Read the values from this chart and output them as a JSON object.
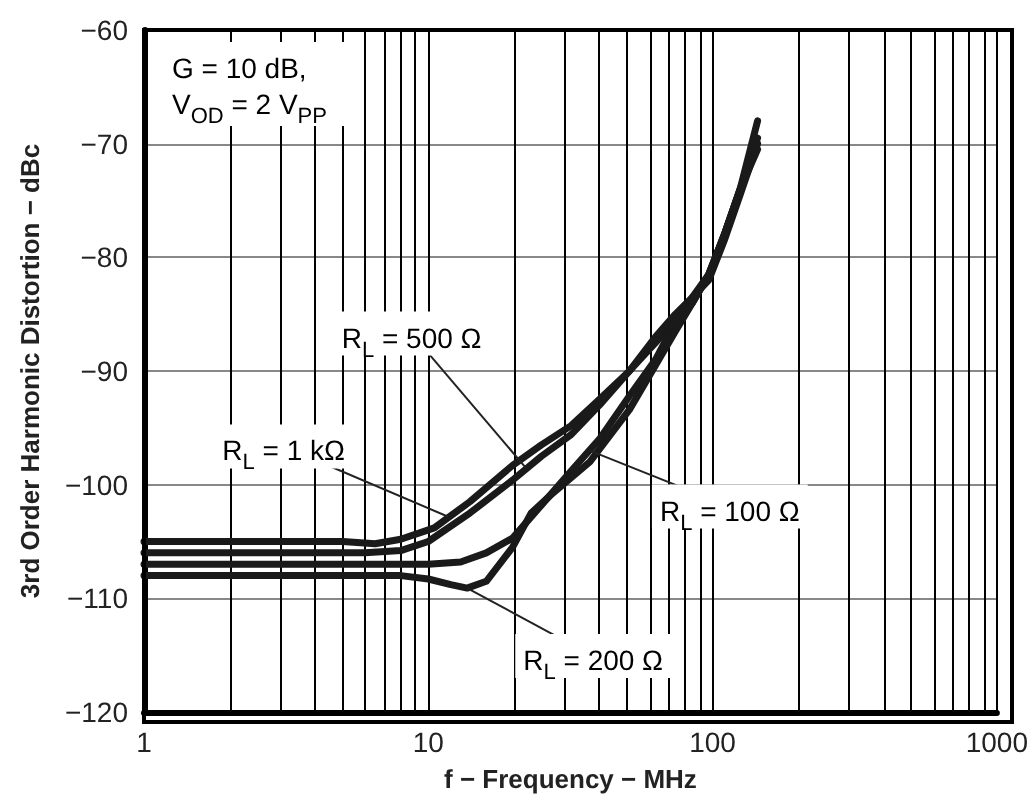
{
  "chart_data": {
    "type": "line",
    "xlabel": "f − Frequency − MHz",
    "ylabel": "3rd Order Harmonic Distortion − dBc",
    "log": "x",
    "grid": true,
    "marker": "none",
    "line_style": "solid",
    "xlim": [
      1,
      1000
    ],
    "xticks": [
      1,
      10,
      100,
      1000
    ],
    "ylim": [
      -120,
      -60
    ],
    "yticks": [
      -120,
      -110,
      -100,
      -90,
      -80,
      -70,
      -60
    ],
    "annotations": [
      "G = 10 dB,",
      "V$_{OD}$ = 2 V$_{PP}$",
      {
        "text": "R$_{L}$ = 500 Ω",
        "x": 22,
        "y": -98.5
      },
      {
        "text": "R$_{L}$ = 1 kΩ",
        "x": 11.7,
        "y": -102.8
      },
      {
        "text": "R$_{L}$ = 100 Ω",
        "x": 37,
        "y": -97
      },
      {
        "text": "R$_{L}$ = 200 Ω",
        "x": 13.7,
        "y": -109.1
      }
    ],
    "series": [
      {
        "color": "#1a1a1a",
        "x": [
          1,
          3,
          5,
          6.5,
          8,
          10.5,
          14,
          19.8,
          25,
          31.8,
          40,
          51,
          63,
          74,
          85,
          97,
          110,
          125,
          144
        ],
        "values": [
          -105,
          -105,
          -105,
          -105.2,
          -104.8,
          -103.8,
          -101.5,
          -98.3,
          -96.5,
          -94.8,
          -92.5,
          -90,
          -87.5,
          -85.5,
          -84,
          -81.5,
          -78,
          -74,
          -68
        ]
      },
      {
        "color": "#1a1a1a",
        "x": [
          1,
          3,
          6,
          8,
          10,
          14,
          19.8,
          25,
          31.8,
          40,
          51,
          63,
          74,
          85,
          97,
          110,
          125,
          144
        ],
        "values": [
          -106,
          -106,
          -106,
          -105.8,
          -105,
          -102.5,
          -99.6,
          -97.5,
          -95.6,
          -93,
          -90,
          -87,
          -85,
          -83.5,
          -82,
          -78.5,
          -74.5,
          -70
        ]
      },
      {
        "color": "#1a1a1a",
        "x": [
          1,
          5,
          10,
          13,
          16,
          19.8,
          25,
          31.8,
          40,
          51,
          63,
          74,
          85,
          97,
          110,
          125,
          144
        ],
        "values": [
          -107,
          -107,
          -107,
          -106.8,
          -106,
          -104.7,
          -101.8,
          -98.8,
          -96,
          -92.2,
          -89,
          -85.7,
          -83.5,
          -81.5,
          -78,
          -74,
          -69.5
        ]
      },
      {
        "color": "#1a1a1a",
        "x": [
          1,
          5,
          8,
          10,
          12,
          13.7,
          16,
          19.8,
          23,
          27,
          37,
          51,
          63,
          74,
          85,
          97,
          110,
          125,
          144
        ],
        "values": [
          -108,
          -108,
          -108,
          -108.3,
          -108.8,
          -109.1,
          -108.5,
          -105.5,
          -102.5,
          -100.9,
          -98,
          -93.4,
          -89.5,
          -86.5,
          -84,
          -81.5,
          -78,
          -74,
          -70.5
        ]
      }
    ]
  }
}
